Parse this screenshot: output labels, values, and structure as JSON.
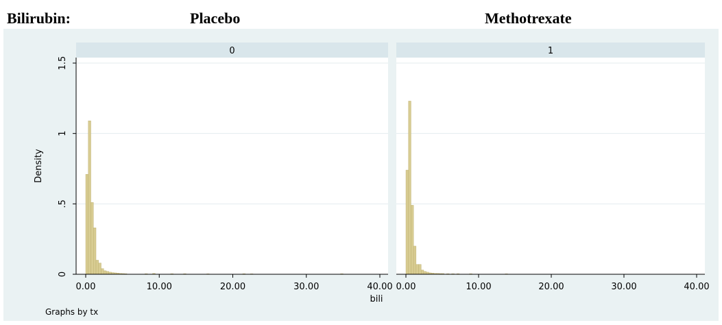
{
  "header": {
    "variable_label": "Bilirubin:",
    "group_left": "Placebo",
    "group_right": "Methotrexate"
  },
  "colors": {
    "outer_bg": "#eaf2f3",
    "plot_bg": "#ffffff",
    "strip_bg": "#d9e6eb",
    "bar_fill": "#d8cc92",
    "bar_stroke": "#b9ab6a",
    "grid": "#e3ebee"
  },
  "chart_data": {
    "type": "bar",
    "panel_variable": "tx",
    "ylabel": "Density",
    "xlabel": "bili",
    "note": "Graphs by tx",
    "xlim": [
      0,
      40
    ],
    "ylim": [
      0,
      1.5
    ],
    "xticks": [
      "0.00",
      "10.00",
      "20.00",
      "30.00",
      "40.00"
    ],
    "yticks": [
      "0",
      ".5",
      "1",
      "1.5"
    ],
    "ytick_values": [
      0,
      0.5,
      1,
      1.5
    ],
    "xtick_values": [
      0,
      10,
      20,
      30,
      40
    ],
    "grid": true,
    "bin_width": 0.35,
    "panels": [
      {
        "label": "0",
        "bin_starts": [
          0,
          0.35,
          0.7,
          1.05,
          1.4,
          1.75,
          2.1,
          2.45,
          2.8,
          3.15,
          3.5,
          3.85,
          4.2,
          4.55,
          4.9,
          5.25,
          8.05,
          9.1,
          11.55,
          13.3,
          16.45,
          21.35,
          22.4,
          34.65
        ],
        "densities": [
          0.71,
          1.09,
          0.51,
          0.33,
          0.1,
          0.08,
          0.04,
          0.025,
          0.02,
          0.015,
          0.012,
          0.01,
          0.008,
          0.006,
          0.005,
          0.004,
          0.004,
          0.006,
          0.004,
          0.004,
          0.003,
          0.004,
          0.003,
          0.004
        ]
      },
      {
        "label": "1",
        "bin_starts": [
          0,
          0.35,
          0.7,
          1.05,
          1.4,
          1.75,
          2.1,
          2.45,
          2.8,
          3.15,
          3.5,
          3.85,
          4.2,
          4.55,
          4.9,
          5.6,
          6.3,
          7.0,
          8.75,
          13.65
        ],
        "densities": [
          0.74,
          1.23,
          0.49,
          0.2,
          0.07,
          0.07,
          0.03,
          0.02,
          0.015,
          0.01,
          0.008,
          0.006,
          0.006,
          0.005,
          0.005,
          0.004,
          0.004,
          0.004,
          0.004,
          0.003
        ]
      }
    ]
  }
}
